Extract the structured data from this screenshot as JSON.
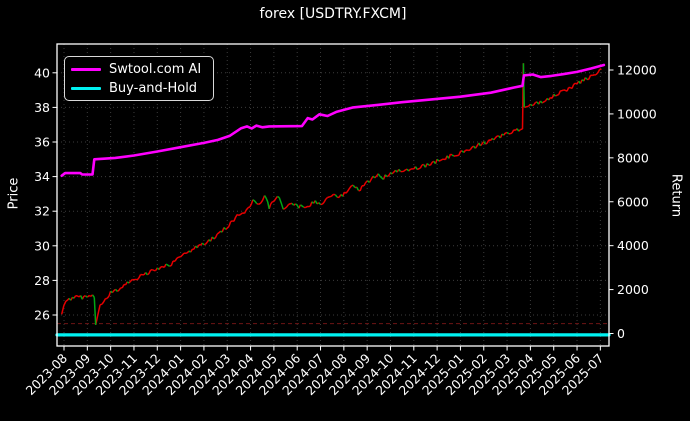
{
  "chart_data": {
    "type": "line",
    "title": "forex [USDTRY.FXCM]",
    "background": "#000000",
    "text_color": "#ffffff",
    "grid": {
      "visible": true,
      "style": "dotted",
      "color": "#3c3c3c"
    },
    "x_axis": {
      "rotation": -45,
      "tick_labels": [
        "2023-08",
        "2023-09",
        "2023-10",
        "2023-11",
        "2023-12",
        "2024-01",
        "2024-02",
        "2024-03",
        "2024-04",
        "2024-05",
        "2024-06",
        "2024-07",
        "2024-08",
        "2024-09",
        "2024-10",
        "2024-11",
        "2024-12",
        "2025-01",
        "2025-02",
        "2025-03",
        "2025-04",
        "2025-05",
        "2025-06",
        "2025-07"
      ]
    },
    "left_axis": {
      "label": "Price",
      "ticks": [
        26,
        28,
        30,
        32,
        34,
        36,
        38,
        40
      ],
      "range": [
        24.2,
        41.75
      ]
    },
    "right_axis": {
      "label": "Return",
      "ticks": [
        0,
        2000,
        4000,
        6000,
        8000,
        10000,
        12000
      ],
      "range": [
        -560,
        13240
      ]
    },
    "legend": {
      "position": "upper-left",
      "entries": [
        {
          "label": "Swtool.com AI",
          "color": "#ff00ff"
        },
        {
          "label": "Buy-and-Hold",
          "color": "#00f2f2"
        }
      ]
    },
    "series": [
      {
        "name": "USDTRY price (red=up / green=down)",
        "axis": "left",
        "style": "jagged",
        "color_up": "#e60000",
        "color_down": "#00a814",
        "points": [
          [
            -0.1,
            26.0
          ],
          [
            0.08,
            26.9
          ],
          [
            0.5,
            27.0
          ],
          [
            1.0,
            27.05
          ],
          [
            1.3,
            27.05
          ],
          [
            1.36,
            25.45
          ],
          [
            1.55,
            26.6
          ],
          [
            2.0,
            27.3
          ],
          [
            2.5,
            27.6
          ],
          [
            3.0,
            28.05
          ],
          [
            3.5,
            28.4
          ],
          [
            4.0,
            28.65
          ],
          [
            4.6,
            28.95
          ],
          [
            5.0,
            29.35
          ],
          [
            5.5,
            29.8
          ],
          [
            6.0,
            30.15
          ],
          [
            6.5,
            30.55
          ],
          [
            7.0,
            31.1
          ],
          [
            7.5,
            31.8
          ],
          [
            7.9,
            32.1
          ],
          [
            8.1,
            32.6
          ],
          [
            8.35,
            32.3
          ],
          [
            8.6,
            32.85
          ],
          [
            8.8,
            32.25
          ],
          [
            9.0,
            32.6
          ],
          [
            9.15,
            32.95
          ],
          [
            9.4,
            32.2
          ],
          [
            9.7,
            32.45
          ],
          [
            10.0,
            32.3
          ],
          [
            10.35,
            32.2
          ],
          [
            10.7,
            32.55
          ],
          [
            11.0,
            32.35
          ],
          [
            11.3,
            32.8
          ],
          [
            11.55,
            33.05
          ],
          [
            11.8,
            32.75
          ],
          [
            12.1,
            33.15
          ],
          [
            12.4,
            33.45
          ],
          [
            12.7,
            33.25
          ],
          [
            13.1,
            33.75
          ],
          [
            13.4,
            34.1
          ],
          [
            13.7,
            33.95
          ],
          [
            14.0,
            34.2
          ],
          [
            14.5,
            34.35
          ],
          [
            15.0,
            34.45
          ],
          [
            15.5,
            34.65
          ],
          [
            16.0,
            34.9
          ],
          [
            16.5,
            35.15
          ],
          [
            17.0,
            35.35
          ],
          [
            17.5,
            35.65
          ],
          [
            18.0,
            35.95
          ],
          [
            18.5,
            36.25
          ],
          [
            19.0,
            36.5
          ],
          [
            19.5,
            36.7
          ],
          [
            19.66,
            36.75
          ],
          [
            19.7,
            40.55
          ],
          [
            19.74,
            38.0
          ],
          [
            20.0,
            38.1
          ],
          [
            20.5,
            38.35
          ],
          [
            21.0,
            38.65
          ],
          [
            21.5,
            39.0
          ],
          [
            22.0,
            39.35
          ],
          [
            22.5,
            39.7
          ],
          [
            23.05,
            40.2
          ]
        ]
      },
      {
        "name": "Swtool.com AI",
        "axis": "left",
        "color": "#ff00ff",
        "width": 2.6,
        "points": [
          [
            -0.1,
            34.05
          ],
          [
            0.05,
            34.2
          ],
          [
            0.7,
            34.2
          ],
          [
            0.78,
            34.12
          ],
          [
            1.22,
            34.12
          ],
          [
            1.3,
            35.0
          ],
          [
            2.2,
            35.08
          ],
          [
            3.0,
            35.22
          ],
          [
            4.0,
            35.45
          ],
          [
            5.0,
            35.7
          ],
          [
            6.0,
            35.95
          ],
          [
            6.6,
            36.12
          ],
          [
            7.1,
            36.35
          ],
          [
            7.6,
            36.8
          ],
          [
            7.85,
            36.9
          ],
          [
            8.05,
            36.78
          ],
          [
            8.25,
            36.95
          ],
          [
            8.5,
            36.85
          ],
          [
            8.8,
            36.9
          ],
          [
            10.2,
            36.92
          ],
          [
            10.45,
            37.38
          ],
          [
            10.65,
            37.3
          ],
          [
            10.95,
            37.6
          ],
          [
            11.3,
            37.5
          ],
          [
            11.7,
            37.75
          ],
          [
            12.4,
            38.0
          ],
          [
            13.5,
            38.15
          ],
          [
            14.5,
            38.3
          ],
          [
            15.7,
            38.45
          ],
          [
            17.0,
            38.62
          ],
          [
            18.3,
            38.85
          ],
          [
            19.3,
            39.15
          ],
          [
            19.66,
            39.25
          ],
          [
            19.72,
            39.85
          ],
          [
            20.1,
            39.9
          ],
          [
            20.45,
            39.75
          ],
          [
            20.9,
            39.82
          ],
          [
            21.4,
            39.92
          ],
          [
            22.0,
            40.05
          ],
          [
            22.6,
            40.25
          ],
          [
            23.15,
            40.45
          ]
        ]
      },
      {
        "name": "Buy-and-Hold",
        "axis": "right",
        "color": "#00f2f2",
        "width": 3.2,
        "points": [
          [
            -0.3,
            -65
          ],
          [
            23.4,
            -65
          ]
        ]
      }
    ],
    "annotations": [
      {
        "type": "hline",
        "axis": "left",
        "value": 25.5,
        "color": "#6e1414",
        "style": "dashed"
      }
    ]
  }
}
